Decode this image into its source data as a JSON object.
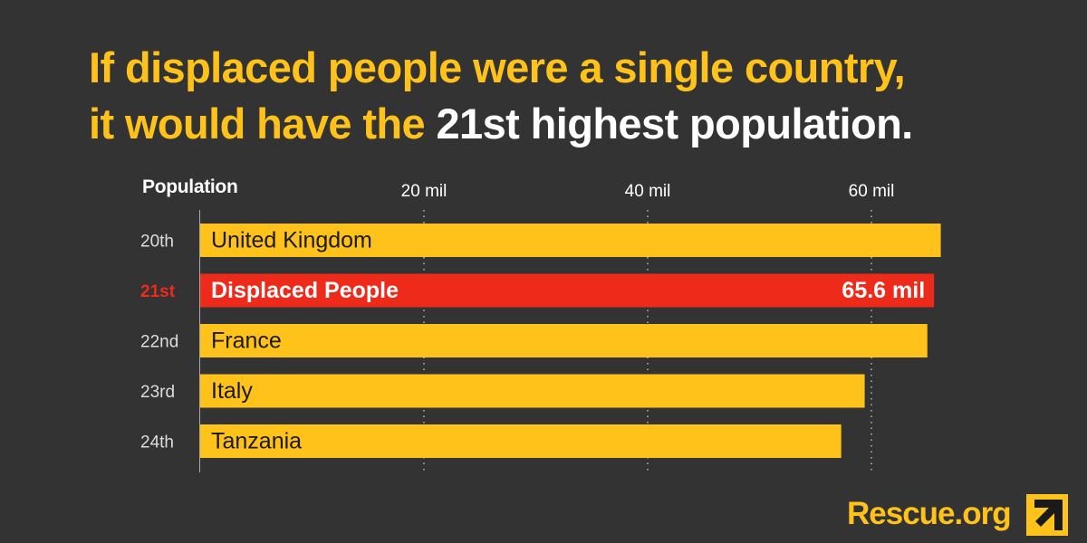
{
  "headline": {
    "line1": "If displaced people were a single country,",
    "line2_prefix": "it would have the ",
    "line2_highlight": "21st highest population."
  },
  "chart_data": {
    "type": "bar",
    "orientation": "horizontal",
    "axis_title": "Population",
    "x_ticks": [
      {
        "value": 20,
        "label": "20 mil"
      },
      {
        "value": 40,
        "label": "40 mil"
      },
      {
        "value": 60,
        "label": "60 mil"
      }
    ],
    "grid": "dotted vertical",
    "categories": [
      {
        "rank": "20th",
        "name": "United Kingdom",
        "value": 66.2,
        "highlight": false
      },
      {
        "rank": "21st",
        "name": "Displaced People",
        "value": 65.6,
        "value_label": "65.6 mil",
        "highlight": true
      },
      {
        "rank": "22nd",
        "name": "France",
        "value": 65.0,
        "highlight": false
      },
      {
        "rank": "23rd",
        "name": "Italy",
        "value": 59.4,
        "highlight": false
      },
      {
        "rank": "24th",
        "name": "Tanzania",
        "value": 57.3,
        "highlight": false
      }
    ],
    "colors": {
      "bar": "#ffc21a",
      "highlight_bar": "#ee2a1a",
      "highlight_rank": "#ee2a1a",
      "rank": "#dddddd",
      "grid": "#bbbbbb",
      "axis": "#aaaaaa"
    }
  },
  "branding": {
    "site": "Rescue.org",
    "logo_icon": "irc-arrow-icon"
  }
}
